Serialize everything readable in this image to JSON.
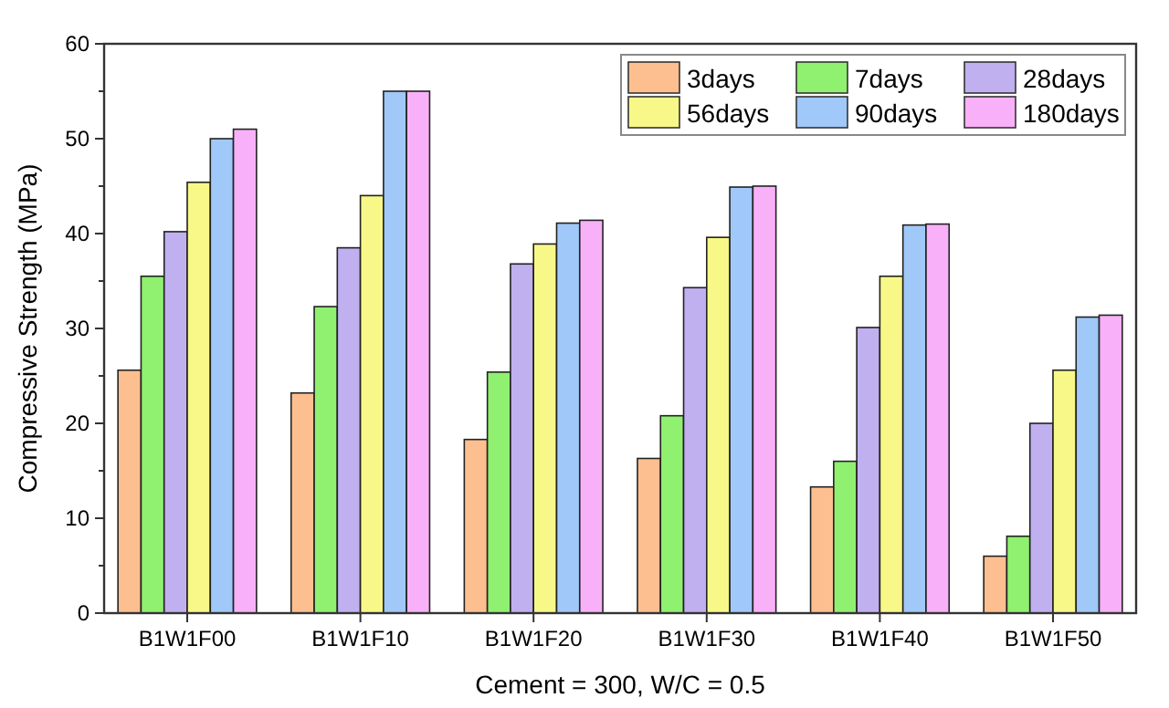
{
  "chart_data": {
    "type": "bar",
    "xlabel": "Cement = 300, W/C = 0.5",
    "ylabel": "Compressive Strength (MPa)",
    "categories": [
      "B1W1F00",
      "B1W1F10",
      "B1W1F20",
      "B1W1F30",
      "B1W1F40",
      "B1W1F50"
    ],
    "series": [
      {
        "name": "3days",
        "color": "#fdbf8f",
        "values": [
          25.6,
          23.2,
          18.3,
          16.3,
          13.3,
          6.0
        ]
      },
      {
        "name": "7days",
        "color": "#90f070",
        "values": [
          35.5,
          32.3,
          25.4,
          20.8,
          16.0,
          8.1
        ]
      },
      {
        "name": "28days",
        "color": "#c0b0f0",
        "values": [
          40.2,
          38.5,
          36.8,
          34.3,
          30.1,
          20.0
        ]
      },
      {
        "name": "56days",
        "color": "#f8f888",
        "values": [
          45.4,
          44.0,
          38.9,
          39.6,
          35.5,
          25.6
        ]
      },
      {
        "name": "90days",
        "color": "#a0c8f8",
        "values": [
          50.0,
          55.0,
          41.1,
          44.9,
          40.9,
          31.2
        ]
      },
      {
        "name": "180days",
        "color": "#f8b0f8",
        "values": [
          51.0,
          55.0,
          41.4,
          45.0,
          41.0,
          31.4
        ]
      }
    ],
    "ylim": [
      0,
      60
    ],
    "yticks": [
      0,
      {
        "value": 5,
        "label": null
      },
      10,
      {
        "value": 15,
        "label": null
      },
      20,
      {
        "value": 25,
        "label": null
      },
      30,
      {
        "value": 35,
        "label": null
      },
      40,
      {
        "value": 45,
        "label": null
      },
      50,
      {
        "value": 55,
        "label": null
      },
      60
    ],
    "legend": "top right"
  }
}
